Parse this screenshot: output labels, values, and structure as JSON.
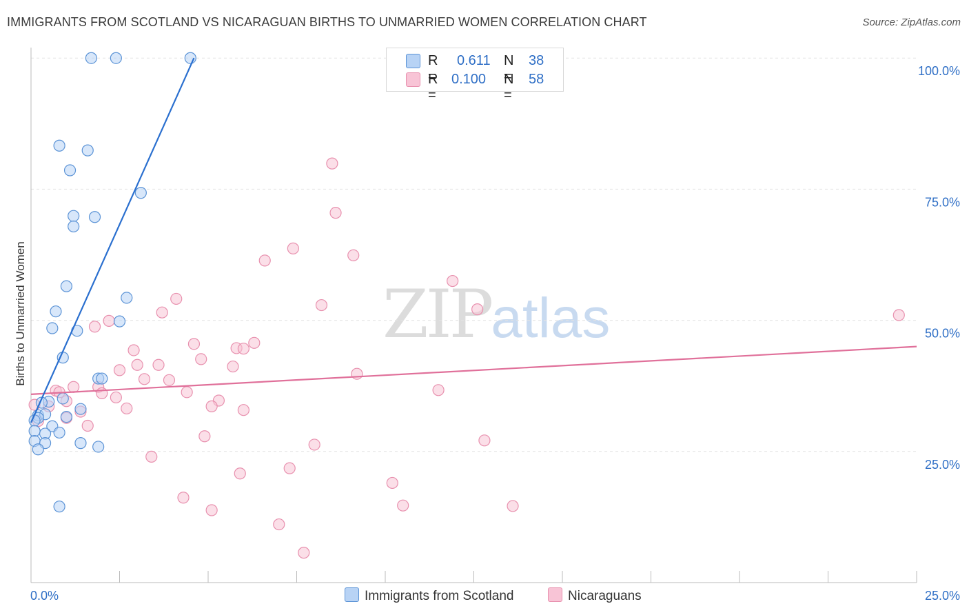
{
  "title": "IMMIGRANTS FROM SCOTLAND VS NICARAGUAN BIRTHS TO UNMARRIED WOMEN CORRELATION CHART",
  "source": "Source: ZipAtlas.com",
  "watermark": {
    "zip": "ZIP",
    "atlas": "atlas"
  },
  "legend": {
    "r_label": "R =",
    "n_label": "N =",
    "series": [
      {
        "r": "0.611",
        "n": "38"
      },
      {
        "r": "0.100",
        "n": "58"
      }
    ]
  },
  "colors": {
    "blue_fill": "#b8d3f5",
    "blue_stroke": "#5b93d6",
    "blue_line": "#2a6fcf",
    "pink_fill": "#f8c4d6",
    "pink_stroke": "#e890ae",
    "pink_line": "#e0709a",
    "axis_label": "#2f6fc6",
    "grid": "#e2e2e2"
  },
  "chart_data": {
    "type": "scatter",
    "title": "IMMIGRANTS FROM SCOTLAND VS NICARAGUAN BIRTHS TO UNMARRIED WOMEN CORRELATION CHART",
    "xlabel": "",
    "ylabel": "Births to Unmarried Women",
    "xlim": [
      0,
      25
    ],
    "ylim": [
      0,
      102
    ],
    "x_tick_labels": [
      "0.0%",
      "25.0%"
    ],
    "y_ticks": [
      25,
      50,
      75,
      100
    ],
    "y_tick_labels": [
      "25.0%",
      "50.0%",
      "75.0%",
      "100.0%"
    ],
    "grid": true,
    "legend_position": "top-center",
    "series": [
      {
        "name": "Immigrants from Scotland",
        "r": 0.611,
        "n": 38,
        "trend": [
          [
            0.0,
            30.5
          ],
          [
            4.6,
            100.0
          ]
        ],
        "points": [
          [
            1.7,
            100
          ],
          [
            2.4,
            100
          ],
          [
            4.5,
            100
          ],
          [
            0.8,
            83.3
          ],
          [
            1.6,
            82.4
          ],
          [
            1.1,
            78.6
          ],
          [
            3.1,
            74.3
          ],
          [
            1.2,
            69.9
          ],
          [
            1.8,
            69.7
          ],
          [
            1.2,
            67.9
          ],
          [
            1.0,
            56.5
          ],
          [
            2.7,
            54.3
          ],
          [
            0.7,
            51.7
          ],
          [
            2.5,
            49.8
          ],
          [
            0.6,
            48.5
          ],
          [
            1.3,
            48.0
          ],
          [
            0.9,
            42.9
          ],
          [
            1.9,
            38.9
          ],
          [
            2.0,
            38.9
          ],
          [
            0.9,
            35.1
          ],
          [
            0.5,
            34.5
          ],
          [
            0.3,
            34.3
          ],
          [
            1.4,
            33.1
          ],
          [
            0.2,
            31.9
          ],
          [
            0.4,
            32.1
          ],
          [
            0.2,
            31.4
          ],
          [
            1.0,
            31.6
          ],
          [
            0.1,
            30.9
          ],
          [
            0.6,
            29.8
          ],
          [
            0.1,
            28.9
          ],
          [
            0.8,
            28.6
          ],
          [
            0.4,
            28.4
          ],
          [
            0.1,
            27.0
          ],
          [
            0.4,
            26.6
          ],
          [
            1.4,
            26.6
          ],
          [
            0.2,
            25.4
          ],
          [
            1.9,
            25.9
          ],
          [
            0.8,
            14.5
          ]
        ]
      },
      {
        "name": "Nicaraguans",
        "r": 0.1,
        "n": 58,
        "trend": [
          [
            0.0,
            35.9
          ],
          [
            25.0,
            45.0
          ]
        ],
        "points": [
          [
            8.5,
            79.9
          ],
          [
            8.6,
            70.5
          ],
          [
            7.4,
            63.7
          ],
          [
            6.6,
            61.4
          ],
          [
            9.1,
            62.4
          ],
          [
            11.9,
            57.5
          ],
          [
            24.5,
            51.0
          ],
          [
            12.6,
            52.1
          ],
          [
            8.2,
            52.9
          ],
          [
            4.1,
            54.1
          ],
          [
            3.7,
            51.5
          ],
          [
            2.2,
            49.9
          ],
          [
            1.8,
            48.8
          ],
          [
            4.6,
            45.5
          ],
          [
            6.3,
            45.7
          ],
          [
            5.8,
            44.7
          ],
          [
            6.0,
            44.6
          ],
          [
            2.9,
            44.3
          ],
          [
            4.8,
            42.6
          ],
          [
            3.6,
            41.5
          ],
          [
            3.0,
            41.5
          ],
          [
            5.7,
            41.2
          ],
          [
            2.5,
            40.5
          ],
          [
            9.2,
            39.8
          ],
          [
            3.2,
            38.8
          ],
          [
            3.9,
            38.6
          ],
          [
            1.9,
            37.3
          ],
          [
            1.2,
            37.3
          ],
          [
            0.7,
            36.6
          ],
          [
            0.8,
            36.3
          ],
          [
            2.0,
            36.1
          ],
          [
            4.4,
            36.3
          ],
          [
            11.5,
            36.7
          ],
          [
            2.4,
            35.3
          ],
          [
            5.3,
            34.7
          ],
          [
            1.0,
            34.6
          ],
          [
            0.1,
            33.9
          ],
          [
            0.5,
            33.6
          ],
          [
            5.1,
            33.6
          ],
          [
            2.7,
            33.2
          ],
          [
            6.0,
            32.9
          ],
          [
            1.4,
            32.6
          ],
          [
            1.0,
            31.4
          ],
          [
            0.2,
            30.8
          ],
          [
            1.6,
            29.9
          ],
          [
            4.9,
            27.9
          ],
          [
            12.8,
            27.1
          ],
          [
            8.0,
            26.3
          ],
          [
            3.4,
            24.0
          ],
          [
            7.3,
            21.8
          ],
          [
            5.9,
            20.8
          ],
          [
            10.2,
            19.0
          ],
          [
            4.3,
            16.2
          ],
          [
            10.5,
            14.7
          ],
          [
            13.6,
            14.6
          ],
          [
            5.1,
            13.8
          ],
          [
            7.0,
            11.1
          ],
          [
            7.7,
            5.7
          ]
        ]
      }
    ]
  }
}
